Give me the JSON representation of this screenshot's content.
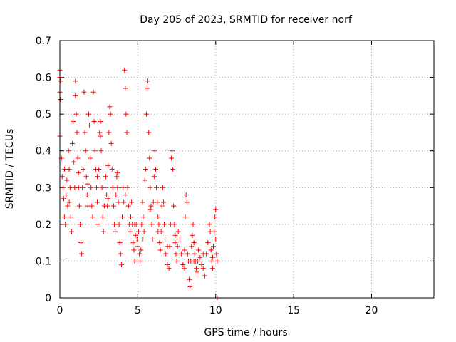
{
  "chart_data": {
    "type": "scatter",
    "title": "Day 205 of 2023, SRMTID for receiver norf",
    "xlabel": "GPS time / hours",
    "ylabel": "SRMTID / TECUs",
    "xlim": [
      0,
      24
    ],
    "ylim": [
      0,
      0.7
    ],
    "xticks": [
      0,
      5,
      10,
      15,
      20
    ],
    "yticks": [
      0,
      0.1,
      0.2,
      0.3,
      0.4,
      0.5,
      0.6,
      0.7
    ],
    "xtick_labels": [
      "0",
      "5",
      "10",
      "15",
      "20"
    ],
    "ytick_labels": [
      "0",
      "0.1",
      "0.2",
      "0.3",
      "0.4",
      "0.5",
      "0.6",
      "0.7"
    ],
    "grid": true,
    "marker": "+",
    "color": "#ff0000",
    "series": [
      {
        "name": "norf",
        "points": [
          [
            0.0,
            0.62
          ],
          [
            0.0,
            0.6
          ],
          [
            0.05,
            0.59
          ],
          [
            0.0,
            0.56
          ],
          [
            0.05,
            0.54
          ],
          [
            0.0,
            0.44
          ],
          [
            0.1,
            0.38
          ],
          [
            0.15,
            0.33
          ],
          [
            0.2,
            0.3
          ],
          [
            0.25,
            0.27
          ],
          [
            0.3,
            0.22
          ],
          [
            0.35,
            0.2
          ],
          [
            0.4,
            0.28
          ],
          [
            0.45,
            0.32
          ],
          [
            0.5,
            0.25
          ],
          [
            0.55,
            0.4
          ],
          [
            0.6,
            0.35
          ],
          [
            0.65,
            0.3
          ],
          [
            0.7,
            0.22
          ],
          [
            0.75,
            0.18
          ],
          [
            0.8,
            0.42
          ],
          [
            0.85,
            0.48
          ],
          [
            0.9,
            0.37
          ],
          [
            0.95,
            0.3
          ],
          [
            1.0,
            0.55
          ],
          [
            1.0,
            0.59
          ],
          [
            1.05,
            0.5
          ],
          [
            1.1,
            0.45
          ],
          [
            1.15,
            0.38
          ],
          [
            1.2,
            0.3
          ],
          [
            1.25,
            0.25
          ],
          [
            1.3,
            0.2
          ],
          [
            1.35,
            0.15
          ],
          [
            1.4,
            0.12
          ],
          [
            1.45,
            0.3
          ],
          [
            1.5,
            0.35
          ],
          [
            1.55,
            0.56
          ],
          [
            1.6,
            0.45
          ],
          [
            1.65,
            0.4
          ],
          [
            1.7,
            0.33
          ],
          [
            1.75,
            0.28
          ],
          [
            1.8,
            0.25
          ],
          [
            1.85,
            0.5
          ],
          [
            1.9,
            0.47
          ],
          [
            1.95,
            0.38
          ],
          [
            2.0,
            0.3
          ],
          [
            2.05,
            0.25
          ],
          [
            2.1,
            0.22
          ],
          [
            2.15,
            0.56
          ],
          [
            2.2,
            0.48
          ],
          [
            2.25,
            0.4
          ],
          [
            2.3,
            0.35
          ],
          [
            2.35,
            0.3
          ],
          [
            2.4,
            0.26
          ],
          [
            2.45,
            0.2
          ],
          [
            2.5,
            0.35
          ],
          [
            2.55,
            0.45
          ],
          [
            2.6,
            0.48
          ],
          [
            2.65,
            0.4
          ],
          [
            2.7,
            0.3
          ],
          [
            2.75,
            0.22
          ],
          [
            2.8,
            0.18
          ],
          [
            2.85,
            0.25
          ],
          [
            2.9,
            0.3
          ],
          [
            2.95,
            0.33
          ],
          [
            3.0,
            0.28
          ],
          [
            3.05,
            0.25
          ],
          [
            3.1,
            0.36
          ],
          [
            3.15,
            0.45
          ],
          [
            3.2,
            0.52
          ],
          [
            3.25,
            0.5
          ],
          [
            3.3,
            0.42
          ],
          [
            3.35,
            0.35
          ],
          [
            3.4,
            0.3
          ],
          [
            3.45,
            0.25
          ],
          [
            3.5,
            0.2
          ],
          [
            3.55,
            0.18
          ],
          [
            3.6,
            0.28
          ],
          [
            3.65,
            0.33
          ],
          [
            3.7,
            0.3
          ],
          [
            3.75,
            0.26
          ],
          [
            3.8,
            0.2
          ],
          [
            3.85,
            0.15
          ],
          [
            3.9,
            0.12
          ],
          [
            3.95,
            0.09
          ],
          [
            4.0,
            0.22
          ],
          [
            4.05,
            0.3
          ],
          [
            4.1,
            0.26
          ],
          [
            4.15,
            0.62
          ],
          [
            4.2,
            0.57
          ],
          [
            4.25,
            0.5
          ],
          [
            4.3,
            0.45
          ],
          [
            4.35,
            0.3
          ],
          [
            4.4,
            0.25
          ],
          [
            4.45,
            0.2
          ],
          [
            4.5,
            0.18
          ],
          [
            4.55,
            0.22
          ],
          [
            4.6,
            0.26
          ],
          [
            4.65,
            0.2
          ],
          [
            4.7,
            0.15
          ],
          [
            4.75,
            0.13
          ],
          [
            4.8,
            0.1
          ],
          [
            4.85,
            0.17
          ],
          [
            4.9,
            0.2
          ],
          [
            4.95,
            0.16
          ],
          [
            5.0,
            0.14
          ],
          [
            5.05,
            0.18
          ],
          [
            5.1,
            0.12
          ],
          [
            5.15,
            0.1
          ],
          [
            5.2,
            0.13
          ],
          [
            5.25,
            0.2
          ],
          [
            5.3,
            0.26
          ],
          [
            5.35,
            0.22
          ],
          [
            5.4,
            0.18
          ],
          [
            5.45,
            0.32
          ],
          [
            5.5,
            0.35
          ],
          [
            5.55,
            0.5
          ],
          [
            5.6,
            0.57
          ],
          [
            5.65,
            0.59
          ],
          [
            5.7,
            0.45
          ],
          [
            5.75,
            0.38
          ],
          [
            5.8,
            0.3
          ],
          [
            5.85,
            0.25
          ],
          [
            5.9,
            0.2
          ],
          [
            5.95,
            0.16
          ],
          [
            6.0,
            0.26
          ],
          [
            6.05,
            0.33
          ],
          [
            6.1,
            0.4
          ],
          [
            6.15,
            0.35
          ],
          [
            6.2,
            0.3
          ],
          [
            6.25,
            0.26
          ],
          [
            6.3,
            0.22
          ],
          [
            6.35,
            0.2
          ],
          [
            6.4,
            0.15
          ],
          [
            6.45,
            0.13
          ],
          [
            6.5,
            0.18
          ],
          [
            6.55,
            0.25
          ],
          [
            6.6,
            0.3
          ],
          [
            6.65,
            0.26
          ],
          [
            6.7,
            0.2
          ],
          [
            6.75,
            0.16
          ],
          [
            6.8,
            0.12
          ],
          [
            6.9,
            0.09
          ],
          [
            7.0,
            0.08
          ],
          [
            7.05,
            0.14
          ],
          [
            7.1,
            0.2
          ],
          [
            7.15,
            0.38
          ],
          [
            7.2,
            0.4
          ],
          [
            7.25,
            0.35
          ],
          [
            7.3,
            0.25
          ],
          [
            7.35,
            0.2
          ],
          [
            7.4,
            0.15
          ],
          [
            7.45,
            0.12
          ],
          [
            7.5,
            0.1
          ],
          [
            7.55,
            0.14
          ],
          [
            7.6,
            0.18
          ],
          [
            7.7,
            0.16
          ],
          [
            7.8,
            0.12
          ],
          [
            7.9,
            0.09
          ],
          [
            8.0,
            0.08
          ],
          [
            8.05,
            0.22
          ],
          [
            8.1,
            0.28
          ],
          [
            8.15,
            0.26
          ],
          [
            8.2,
            0.12
          ],
          [
            8.25,
            0.1
          ],
          [
            8.3,
            0.05
          ],
          [
            8.35,
            0.03
          ],
          [
            8.4,
            0.1
          ],
          [
            8.45,
            0.14
          ],
          [
            8.5,
            0.17
          ],
          [
            8.55,
            0.2
          ],
          [
            8.6,
            0.15
          ],
          [
            8.65,
            0.12
          ],
          [
            8.7,
            0.1
          ],
          [
            8.75,
            0.08
          ],
          [
            8.8,
            0.07
          ],
          [
            8.85,
            0.1
          ],
          [
            8.9,
            0.13
          ],
          [
            9.0,
            0.11
          ],
          [
            9.1,
            0.09
          ],
          [
            9.2,
            0.08
          ],
          [
            9.3,
            0.06
          ],
          [
            9.4,
            0.12
          ],
          [
            9.5,
            0.15
          ],
          [
            9.6,
            0.2
          ],
          [
            9.65,
            0.18
          ],
          [
            9.7,
            0.13
          ],
          [
            9.75,
            0.1
          ],
          [
            9.8,
            0.08
          ],
          [
            9.85,
            0.14
          ],
          [
            9.9,
            0.18
          ],
          [
            9.95,
            0.22
          ],
          [
            10.0,
            0.24
          ],
          [
            10.0,
            0.16
          ],
          [
            10.05,
            0.12
          ],
          [
            10.1,
            0.1
          ],
          [
            10.1,
            0.0
          ],
          [
            0.3,
            0.35
          ],
          [
            0.6,
            0.26
          ],
          [
            1.2,
            0.34
          ],
          [
            1.8,
            0.31
          ],
          [
            2.4,
            0.33
          ],
          [
            3.1,
            0.27
          ],
          [
            3.7,
            0.34
          ],
          [
            4.2,
            0.28
          ],
          [
            4.8,
            0.2
          ],
          [
            5.3,
            0.16
          ],
          [
            5.8,
            0.24
          ],
          [
            6.3,
            0.18
          ],
          [
            6.9,
            0.14
          ],
          [
            7.4,
            0.17
          ],
          [
            8.0,
            0.13
          ],
          [
            8.6,
            0.1
          ],
          [
            9.2,
            0.12
          ],
          [
            9.8,
            0.11
          ],
          [
            2.6,
            0.44
          ]
        ]
      }
    ]
  }
}
